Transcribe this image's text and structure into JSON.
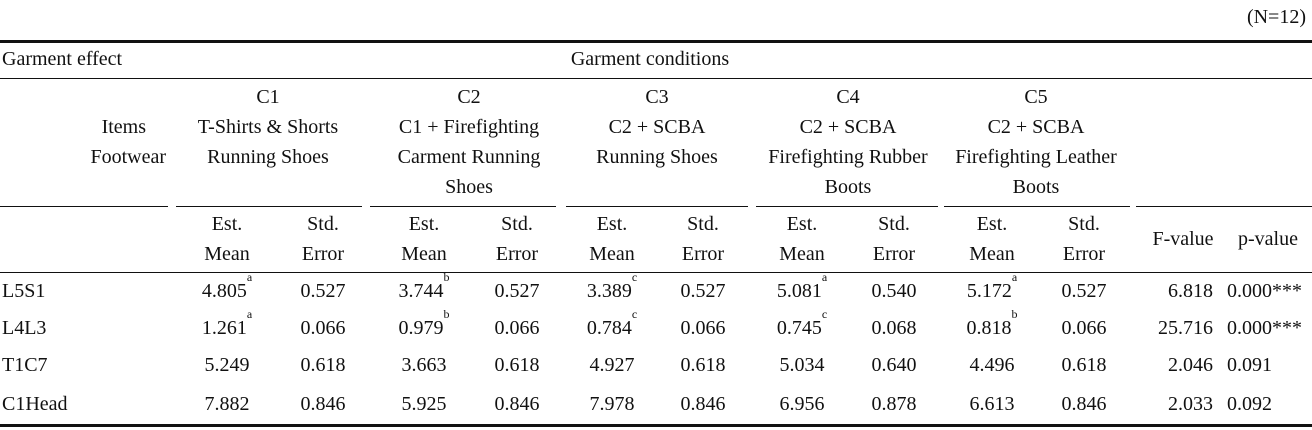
{
  "n_label": "(N=12)",
  "header": {
    "garment_effect": "Garment effect",
    "garment_conditions": "Garment conditions",
    "items": "Items",
    "footwear": "Footwear",
    "conditions": [
      {
        "code": "C1",
        "line1": "T-Shirts & Shorts",
        "line2": "Running Shoes",
        "line3": ""
      },
      {
        "code": "C2",
        "line1": "C1 + Firefighting",
        "line2": "Carment Running",
        "line3": "Shoes"
      },
      {
        "code": "C3",
        "line1": "C2 + SCBA",
        "line2": "Running Shoes",
        "line3": ""
      },
      {
        "code": "C4",
        "line1": "C2 + SCBA",
        "line2": "Firefighting Rubber",
        "line3": "Boots"
      },
      {
        "code": "C5",
        "line1": "C2 + SCBA",
        "line2": "Firefighting Leather",
        "line3": "Boots"
      }
    ],
    "est_line1": "Est.",
    "est_line2": "Mean",
    "std_line1": "Std.",
    "std_line2": "Error",
    "f_value": "F-value",
    "p_value": "p-value"
  },
  "rows": [
    {
      "item": "L5S1",
      "cells": [
        {
          "mean": "4.805",
          "sup": "a",
          "se": "0.527"
        },
        {
          "mean": "3.744",
          "sup": "b",
          "se": "0.527"
        },
        {
          "mean": "3.389",
          "sup": "c",
          "se": "0.527"
        },
        {
          "mean": "5.081",
          "sup": "a",
          "se": "0.540"
        },
        {
          "mean": "5.172",
          "sup": "a",
          "se": "0.527"
        }
      ],
      "f": "6.818",
      "p": "0.000***"
    },
    {
      "item": "L4L3",
      "cells": [
        {
          "mean": "1.261",
          "sup": "a",
          "se": "0.066"
        },
        {
          "mean": "0.979",
          "sup": "b",
          "se": "0.066"
        },
        {
          "mean": "0.784",
          "sup": "c",
          "se": "0.066"
        },
        {
          "mean": "0.745",
          "sup": "c",
          "se": "0.068"
        },
        {
          "mean": "0.818",
          "sup": "b",
          "se": "0.066"
        }
      ],
      "f": "25.716",
      "p": "0.000***"
    },
    {
      "item": "T1C7",
      "cells": [
        {
          "mean": "5.249",
          "sup": "",
          "se": "0.618"
        },
        {
          "mean": "3.663",
          "sup": "",
          "se": "0.618"
        },
        {
          "mean": "4.927",
          "sup": "",
          "se": "0.618"
        },
        {
          "mean": "5.034",
          "sup": "",
          "se": "0.640"
        },
        {
          "mean": "4.496",
          "sup": "",
          "se": "0.618"
        }
      ],
      "f": "2.046",
      "p": "0.091"
    },
    {
      "item": "C1Head",
      "cells": [
        {
          "mean": "7.882",
          "sup": "",
          "se": "0.846"
        },
        {
          "mean": "5.925",
          "sup": "",
          "se": "0.846"
        },
        {
          "mean": "7.978",
          "sup": "",
          "se": "0.846"
        },
        {
          "mean": "6.956",
          "sup": "",
          "se": "0.878"
        },
        {
          "mean": "6.613",
          "sup": "",
          "se": "0.846"
        }
      ],
      "f": "2.033",
      "p": "0.092"
    }
  ]
}
